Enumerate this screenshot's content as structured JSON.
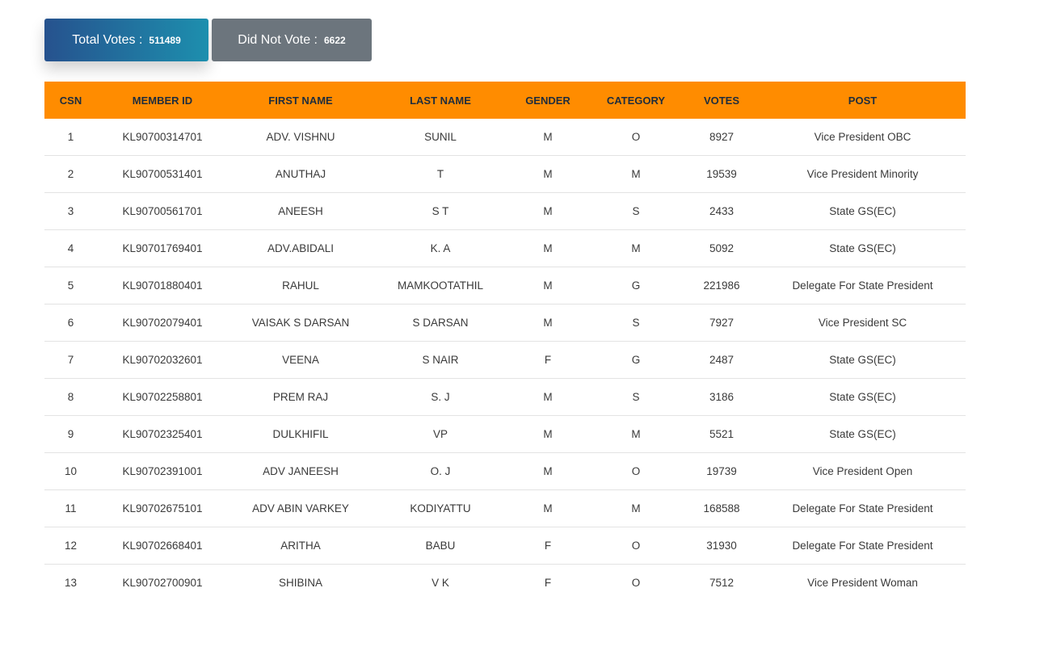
{
  "stats": {
    "total_label": "Total Votes :",
    "total_value": "511489",
    "novote_label": "Did Not Vote :",
    "novote_value": "6622"
  },
  "table": {
    "headers": [
      "CSN",
      "MEMBER ID",
      "FIRST NAME",
      "LAST NAME",
      "GENDER",
      "CATEGORY",
      "VOTES",
      "POST"
    ],
    "rows": [
      [
        "1",
        "KL90700314701",
        "ADV. VISHNU",
        "SUNIL",
        "M",
        "O",
        "8927",
        "Vice President OBC"
      ],
      [
        "2",
        "KL90700531401",
        "ANUTHAJ",
        "T",
        "M",
        "M",
        "19539",
        "Vice President Minority"
      ],
      [
        "3",
        "KL90700561701",
        "ANEESH",
        "S T",
        "M",
        "S",
        "2433",
        "State GS(EC)"
      ],
      [
        "4",
        "KL90701769401",
        "ADV.ABIDALI",
        "K. A",
        "M",
        "M",
        "5092",
        "State GS(EC)"
      ],
      [
        "5",
        "KL90701880401",
        "RAHUL",
        "MAMKOOTATHIL",
        "M",
        "G",
        "221986",
        "Delegate For State President"
      ],
      [
        "6",
        "KL90702079401",
        "VAISAK S DARSAN",
        "S DARSAN",
        "M",
        "S",
        "7927",
        "Vice President SC"
      ],
      [
        "7",
        "KL90702032601",
        "VEENA",
        "S NAIR",
        "F",
        "G",
        "2487",
        "State GS(EC)"
      ],
      [
        "8",
        "KL90702258801",
        "PREM RAJ",
        "S. J",
        "M",
        "S",
        "3186",
        "State GS(EC)"
      ],
      [
        "9",
        "KL90702325401",
        "DULKHIFIL",
        "VP",
        "M",
        "M",
        "5521",
        "State GS(EC)"
      ],
      [
        "10",
        "KL90702391001",
        "ADV JANEESH",
        "O. J",
        "M",
        "O",
        "19739",
        "Vice President Open"
      ],
      [
        "11",
        "KL90702675101",
        "ADV ABIN VARKEY",
        "KODIYATTU",
        "M",
        "M",
        "168588",
        "Delegate For State President"
      ],
      [
        "12",
        "KL90702668401",
        "ARITHA",
        "BABU",
        "F",
        "O",
        "31930",
        "Delegate For State President"
      ],
      [
        "13",
        "KL90702700901",
        "SHIBINA",
        "V K",
        "F",
        "O",
        "7512",
        "Vice President Woman"
      ]
    ]
  },
  "colors": {
    "header_bg": "#ff8c00",
    "total_gradient_start": "#26528e",
    "total_gradient_end": "#1d8fae",
    "novote_bg": "#6c757d"
  }
}
